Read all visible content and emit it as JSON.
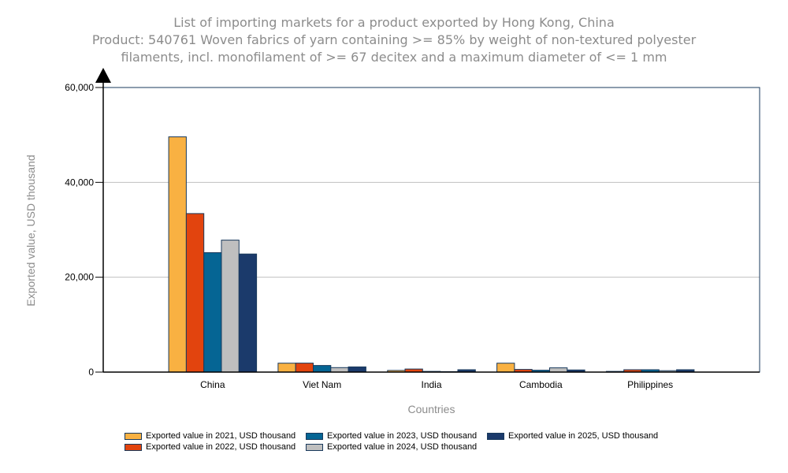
{
  "chart_data": {
    "type": "bar",
    "title": [
      "List of importing markets for a product exported by Hong Kong, China",
      "Product: 540761 Woven fabrics of yarn containing >= 85% by weight of non-textured polyester",
      "filaments, incl. monofilament of >= 67 decitex and a maximum diameter of <= 1 mm"
    ],
    "xlabel": "Countries",
    "ylabel": "Exported value, USD thousand",
    "ylim": [
      0,
      60000
    ],
    "yticks": [
      0,
      20000,
      40000,
      60000
    ],
    "ytick_labels": [
      "0",
      "20,000",
      "40,000",
      "60,000"
    ],
    "grid": true,
    "legend_position": "bottom",
    "categories": [
      "China",
      "Viet Nam",
      "India",
      "Cambodia",
      "Philippines"
    ],
    "series": [
      {
        "name": "Exported value in 2021, USD thousand",
        "color": "#f9b142",
        "values": [
          49600,
          1880,
          350,
          1880,
          150
        ]
      },
      {
        "name": "Exported value in 2022, USD thousand",
        "color": "#e2440e",
        "values": [
          33430,
          1900,
          650,
          560,
          500
        ]
      },
      {
        "name": "Exported value in 2023, USD thousand",
        "color": "#056594",
        "values": [
          25180,
          1390,
          150,
          400,
          500
        ]
      },
      {
        "name": "Exported value in 2024, USD thousand",
        "color": "#bfbfbf",
        "values": [
          27820,
          940,
          100,
          890,
          300
        ]
      },
      {
        "name": "Exported value in 2025, USD thousand",
        "color": "#1b3a6b",
        "values": [
          24900,
          1100,
          500,
          450,
          500
        ]
      }
    ]
  },
  "colors": {
    "bar_border": "#1a3a5c",
    "gridline": "#c0c0c0",
    "frame": "#1a3a5c",
    "axis": "#000000"
  }
}
